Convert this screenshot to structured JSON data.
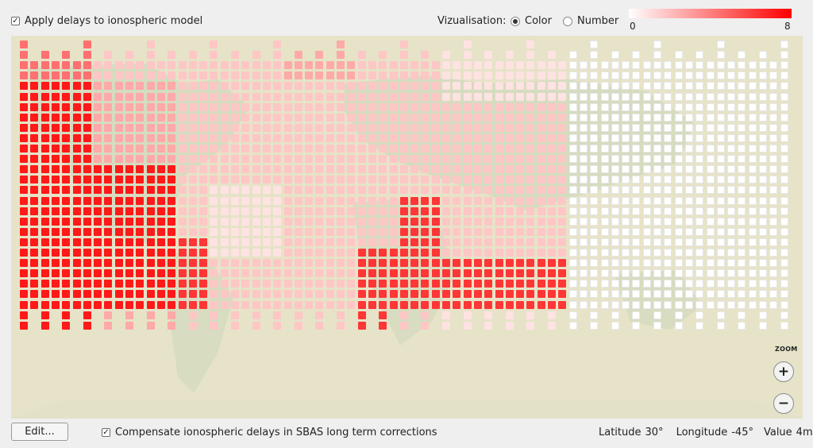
{
  "top": {
    "apply_delays_label": "Apply delays to ionospheric model",
    "apply_delays_checked": true,
    "visualisation_label": "Vizualisation:",
    "options": [
      {
        "label": "Color",
        "selected": true
      },
      {
        "label": "Number",
        "selected": false
      }
    ],
    "scale_min": "0",
    "scale_max": "8",
    "scale_colors": [
      "#ffffff",
      "#ff0000"
    ]
  },
  "map": {
    "zoom_label": "ZOOM",
    "zoom_in": "+",
    "zoom_out": "−"
  },
  "bottom": {
    "edit_label": "Edit...",
    "compensate_label": "Compensate ionospheric delays in SBAS long term corrections",
    "compensate_checked": true,
    "latitude_label": "Latitude",
    "latitude_value": "30°",
    "longitude_label": "Longitude",
    "longitude_value": "-45°",
    "value_label": "Value",
    "value_value": "4m"
  }
}
